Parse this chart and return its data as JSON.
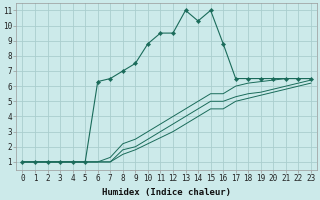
{
  "xlabel": "Humidex (Indice chaleur)",
  "bg_color": "#cceaea",
  "grid_color": "#aacece",
  "line_color": "#1a6b5a",
  "xlim": [
    -0.5,
    23.5
  ],
  "ylim": [
    0.5,
    11.5
  ],
  "xticks": [
    0,
    1,
    2,
    3,
    4,
    5,
    6,
    7,
    8,
    9,
    10,
    11,
    12,
    13,
    14,
    15,
    16,
    17,
    18,
    19,
    20,
    21,
    22,
    23
  ],
  "yticks": [
    1,
    2,
    3,
    4,
    5,
    6,
    7,
    8,
    9,
    10,
    11
  ],
  "main_x": [
    0,
    1,
    2,
    3,
    4,
    5,
    6,
    7,
    8,
    9,
    10,
    11,
    12,
    13,
    14,
    15,
    16,
    17,
    18,
    19,
    20,
    21,
    22,
    23
  ],
  "main_y": [
    1.0,
    1.0,
    1.0,
    1.0,
    1.0,
    1.0,
    6.3,
    6.5,
    7.0,
    7.5,
    8.8,
    9.5,
    9.5,
    11.0,
    10.3,
    11.0,
    8.8,
    6.5,
    6.5,
    6.5,
    6.5,
    6.5,
    6.5,
    6.5
  ],
  "line2_x": [
    0,
    1,
    2,
    3,
    4,
    5,
    6,
    7,
    8,
    9,
    10,
    11,
    12,
    13,
    14,
    15,
    16,
    17,
    18,
    19,
    20,
    21,
    22,
    23
  ],
  "line2_y": [
    1.0,
    1.0,
    1.0,
    1.0,
    1.0,
    1.0,
    1.0,
    1.3,
    2.2,
    2.5,
    3.0,
    3.5,
    4.0,
    4.5,
    5.0,
    5.5,
    5.5,
    6.0,
    6.2,
    6.3,
    6.4,
    6.5,
    6.5,
    6.5
  ],
  "line3_x": [
    0,
    1,
    2,
    3,
    4,
    5,
    6,
    7,
    8,
    9,
    10,
    11,
    12,
    13,
    14,
    15,
    16,
    17,
    18,
    19,
    20,
    21,
    22,
    23
  ],
  "line3_y": [
    1.0,
    1.0,
    1.0,
    1.0,
    1.0,
    1.0,
    1.0,
    1.0,
    1.8,
    2.0,
    2.5,
    3.0,
    3.5,
    4.0,
    4.5,
    5.0,
    5.0,
    5.3,
    5.5,
    5.6,
    5.8,
    6.0,
    6.2,
    6.4
  ],
  "line4_x": [
    0,
    1,
    2,
    3,
    4,
    5,
    6,
    7,
    8,
    9,
    10,
    11,
    12,
    13,
    14,
    15,
    16,
    17,
    18,
    19,
    20,
    21,
    22,
    23
  ],
  "line4_y": [
    1.0,
    1.0,
    1.0,
    1.0,
    1.0,
    1.0,
    1.0,
    1.0,
    1.5,
    1.8,
    2.2,
    2.6,
    3.0,
    3.5,
    4.0,
    4.5,
    4.5,
    5.0,
    5.2,
    5.4,
    5.6,
    5.8,
    6.0,
    6.2
  ]
}
